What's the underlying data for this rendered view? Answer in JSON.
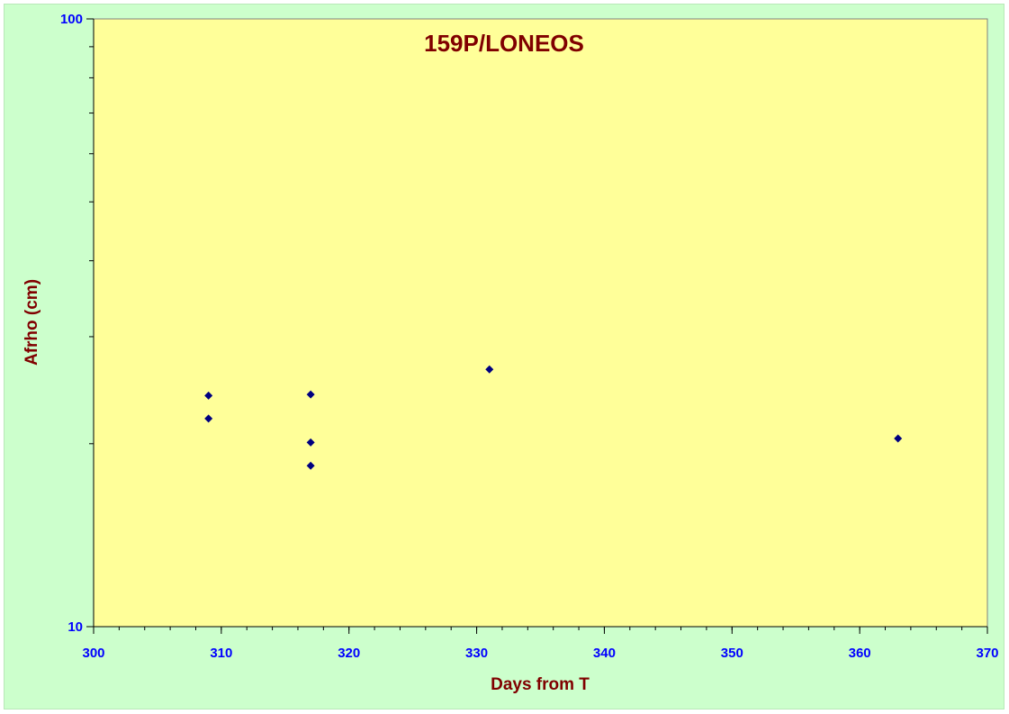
{
  "chart_data": {
    "type": "scatter",
    "title": "159P/LONEOS",
    "xlabel": "Days from T",
    "ylabel": "Afrho (cm)",
    "xlim": [
      300,
      370
    ],
    "ylim": [
      10,
      100
    ],
    "y_scale": "log",
    "x_ticks": [
      "300",
      "310",
      "320",
      "330",
      "340",
      "350",
      "360",
      "370"
    ],
    "y_ticks": [
      "10",
      "100"
    ],
    "grid": false,
    "legend": "none",
    "colors": {
      "plot_background": "#ffff99",
      "frame_background": "#ccffcc",
      "marker": "#000080",
      "title": "#800000",
      "ticks": "#0000ff"
    },
    "series": [
      {
        "x": [
          309,
          309,
          317,
          317,
          317,
          331,
          363
        ],
        "y": [
          24,
          22,
          24.1,
          20.1,
          18.4,
          26.5,
          20.4
        ]
      }
    ]
  }
}
